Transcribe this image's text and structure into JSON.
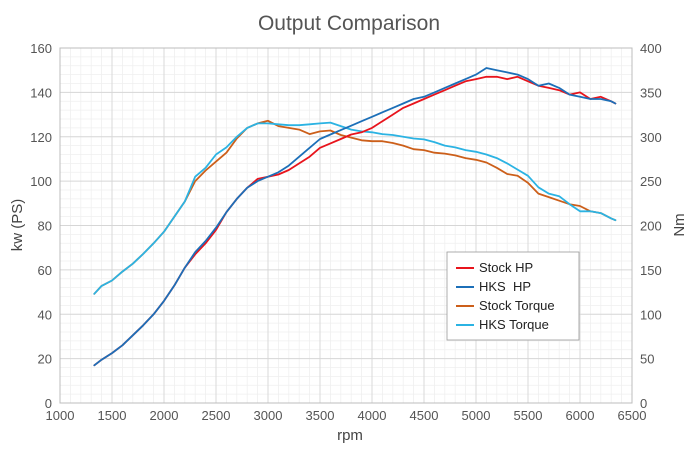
{
  "chart_data": {
    "type": "line",
    "title": "Output Comparison",
    "xlabel": "rpm",
    "ylabel_left": "kw (PS)",
    "ylabel_right": "Nm",
    "xlim": [
      1000,
      6500
    ],
    "ylim_left": [
      0,
      160
    ],
    "ylim_right": [
      0,
      400
    ],
    "x_ticks": [
      "1000",
      "1500",
      "2000",
      "2500",
      "3000",
      "3500",
      "4000",
      "4500",
      "5000",
      "5500",
      "6000",
      "6500"
    ],
    "y_ticks_left": [
      "0",
      "20",
      "40",
      "60",
      "80",
      "100",
      "120",
      "140",
      "160"
    ],
    "y_ticks_right": [
      "0",
      "50",
      "100",
      "150",
      "200",
      "250",
      "300",
      "350",
      "400"
    ],
    "grid": true,
    "legend_position": "lower-right",
    "series": [
      {
        "name": "Stock HP",
        "axis": "left",
        "color": "#e8141c",
        "x": [
          1330,
          1400,
          1500,
          1600,
          1700,
          1800,
          1900,
          2000,
          2100,
          2200,
          2300,
          2400,
          2500,
          2600,
          2700,
          2800,
          2900,
          3000,
          3100,
          3200,
          3300,
          3400,
          3500,
          3600,
          3700,
          3800,
          3900,
          4000,
          4100,
          4200,
          4300,
          4400,
          4500,
          4600,
          4700,
          4800,
          4900,
          5000,
          5100,
          5200,
          5300,
          5400,
          5500,
          5600,
          5700,
          5800,
          5900,
          6000,
          6100,
          6200,
          6300,
          6340
        ],
        "y": [
          17,
          19.5,
          22.5,
          26,
          30.5,
          35,
          40,
          46,
          53,
          61,
          67,
          72,
          78,
          86,
          92,
          97,
          101,
          102,
          103,
          105,
          108,
          111,
          115,
          117,
          119,
          121,
          122,
          124,
          127,
          130,
          133,
          135,
          137,
          139,
          141,
          143,
          145,
          146,
          147,
          147,
          146,
          147,
          145,
          143,
          142,
          141,
          139,
          140,
          137,
          138,
          136,
          135
        ]
      },
      {
        "name": "HKS  HP",
        "axis": "left",
        "color": "#1c6fb8",
        "x": [
          1330,
          1400,
          1500,
          1600,
          1700,
          1800,
          1900,
          2000,
          2100,
          2200,
          2300,
          2400,
          2500,
          2600,
          2700,
          2800,
          2900,
          3000,
          3100,
          3200,
          3300,
          3400,
          3500,
          3600,
          3700,
          3800,
          3900,
          4000,
          4100,
          4200,
          4300,
          4400,
          4500,
          4600,
          4700,
          4800,
          4900,
          5000,
          5100,
          5200,
          5300,
          5400,
          5500,
          5600,
          5700,
          5800,
          5900,
          6000,
          6100,
          6200,
          6300,
          6340
        ],
        "y": [
          17,
          19.5,
          22.5,
          26,
          30.5,
          35,
          40,
          46,
          53,
          61,
          68,
          73,
          79,
          86,
          92,
          97,
          100,
          102,
          104,
          107,
          111,
          115,
          119,
          121,
          123,
          125,
          127,
          129,
          131,
          133,
          135,
          137,
          138,
          140,
          142,
          144,
          146,
          148,
          151,
          150,
          149,
          148,
          146,
          143,
          144,
          142,
          139,
          138,
          137,
          137,
          136,
          135
        ]
      },
      {
        "name": "Stock Torque",
        "axis": "right",
        "color": "#cc5f1a",
        "x": [
          1330,
          1400,
          1500,
          1600,
          1700,
          1800,
          1900,
          2000,
          2100,
          2200,
          2300,
          2400,
          2500,
          2600,
          2700,
          2800,
          2900,
          3000,
          3100,
          3200,
          3300,
          3400,
          3500,
          3600,
          3700,
          3800,
          3900,
          4000,
          4100,
          4200,
          4300,
          4400,
          4500,
          4600,
          4700,
          4800,
          4900,
          5000,
          5100,
          5200,
          5300,
          5400,
          5500,
          5600,
          5700,
          5800,
          5900,
          6000,
          6100,
          6200,
          6300,
          6340
        ],
        "y": [
          123,
          132,
          138,
          148,
          157,
          168,
          180,
          193,
          210,
          227,
          250,
          262,
          272,
          282,
          298,
          310,
          315,
          318,
          312,
          310,
          308,
          303,
          306,
          307,
          302,
          299,
          296,
          295,
          295,
          293,
          290,
          286,
          285,
          282,
          281,
          279,
          276,
          274,
          271,
          265,
          258,
          256,
          248,
          236,
          232,
          228,
          224,
          222,
          216,
          214,
          208,
          206
        ]
      },
      {
        "name": "HKS Torque",
        "axis": "right",
        "color": "#2bb3e3",
        "x": [
          1330,
          1400,
          1500,
          1600,
          1700,
          1800,
          1900,
          2000,
          2100,
          2200,
          2300,
          2400,
          2500,
          2600,
          2700,
          2800,
          2900,
          3000,
          3100,
          3200,
          3300,
          3400,
          3500,
          3600,
          3700,
          3800,
          3900,
          4000,
          4100,
          4200,
          4300,
          4400,
          4500,
          4600,
          4700,
          4800,
          4900,
          5000,
          5100,
          5200,
          5300,
          5400,
          5500,
          5600,
          5700,
          5800,
          5900,
          6000,
          6100,
          6200,
          6300,
          6340
        ],
        "y": [
          123,
          132,
          138,
          148,
          157,
          168,
          180,
          193,
          210,
          227,
          255,
          265,
          280,
          288,
          300,
          310,
          315,
          315,
          314,
          313,
          313,
          314,
          315,
          316,
          312,
          308,
          306,
          305,
          303,
          302,
          300,
          298,
          297,
          294,
          290,
          288,
          285,
          283,
          280,
          276,
          270,
          263,
          256,
          243,
          236,
          233,
          224,
          216,
          216,
          214,
          208,
          206
        ]
      }
    ]
  }
}
